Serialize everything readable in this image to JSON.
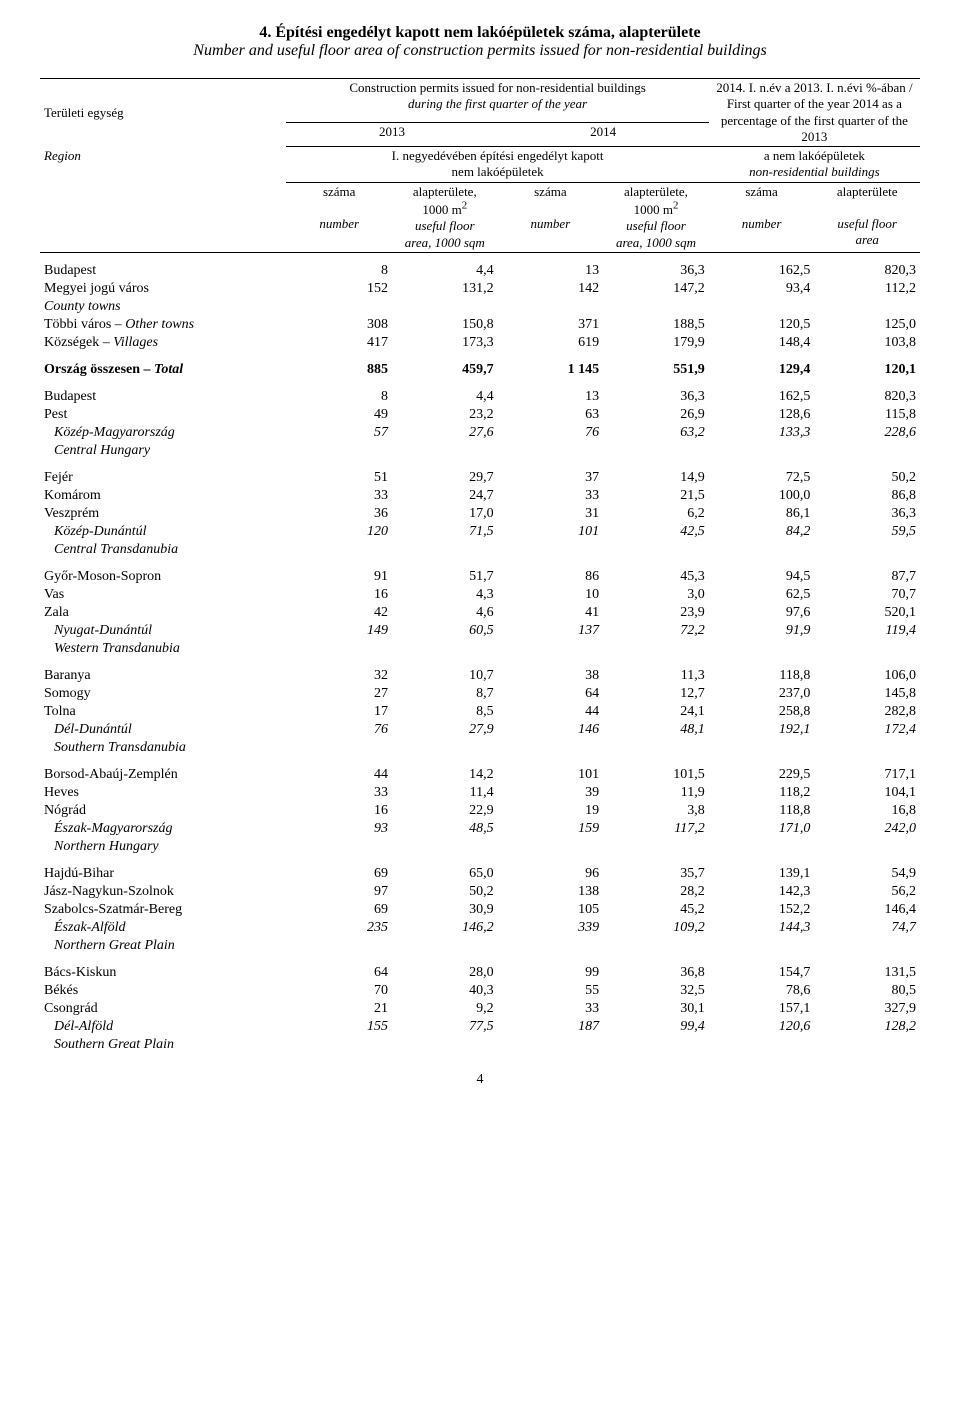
{
  "title_hu": "4. Építési engedélyt kapott nem lakóépületek száma, alapterülete",
  "title_en": "Number and useful floor area of construction permits issued for non-residential buildings",
  "header": {
    "left_hu": "Területi egység",
    "left_en": "Region",
    "top_hu": "Construction permits issued for non-residential buildings",
    "top_en": "during the first quarter of the year",
    "y2013": "2013",
    "y2014": "2014",
    "mid_hu": "I. negyedévében építési engedélyt kapott",
    "mid_hu2": "nem lakóépületek",
    "right1": "2014. I. n.év a 2013. I. n.évi %-ában / First quarter of the year 2014 as a percentage of the first quarter of the 2013",
    "right2_hu": "a nem lakóépületek",
    "right2_en": "non-residential buildings",
    "szama": "száma",
    "alap": "alapterülete,",
    "alap_last": "alapterülete",
    "m2": "1000 m",
    "sup2": "2",
    "number": "number",
    "useful": "useful floor",
    "area_sqm": "area, 1000 sqm",
    "area": "area"
  },
  "groups": [
    {
      "rows": [
        {
          "label": "Budapest",
          "v": [
            "8",
            "4,4",
            "13",
            "36,3",
            "162,5",
            "820,3"
          ]
        },
        {
          "label": "Megyei jogú város",
          "v": [
            "152",
            "131,2",
            "142",
            "147,2",
            "93,4",
            "112,2"
          ]
        },
        {
          "label": "County towns",
          "italic": true
        },
        {
          "label": "Többi város – Other towns",
          "mixed": true,
          "v": [
            "308",
            "150,8",
            "371",
            "188,5",
            "120,5",
            "125,0"
          ]
        },
        {
          "label": "Községek – Villages",
          "mixed": true,
          "v": [
            "417",
            "173,3",
            "619",
            "179,9",
            "148,4",
            "103,8"
          ]
        }
      ]
    },
    {
      "rows": [
        {
          "label": "Ország összesen – Total",
          "bold": true,
          "mixed": true,
          "v": [
            "885",
            "459,7",
            "1 145",
            "551,9",
            "129,4",
            "120,1"
          ]
        }
      ]
    },
    {
      "rows": [
        {
          "label": "Budapest",
          "v": [
            "8",
            "4,4",
            "13",
            "36,3",
            "162,5",
            "820,3"
          ]
        },
        {
          "label": "Pest",
          "v": [
            "49",
            "23,2",
            "63",
            "26,9",
            "128,6",
            "115,8"
          ]
        },
        {
          "label": "Közép-Magyarország",
          "indent": true,
          "italic": true,
          "v": [
            "57",
            "27,6",
            "76",
            "63,2",
            "133,3",
            "228,6"
          ]
        },
        {
          "label": "Central Hungary",
          "indent": true,
          "italic": true
        }
      ]
    },
    {
      "rows": [
        {
          "label": "Fejér",
          "v": [
            "51",
            "29,7",
            "37",
            "14,9",
            "72,5",
            "50,2"
          ]
        },
        {
          "label": "Komárom",
          "v": [
            "33",
            "24,7",
            "33",
            "21,5",
            "100,0",
            "86,8"
          ]
        },
        {
          "label": "Veszprém",
          "v": [
            "36",
            "17,0",
            "31",
            "6,2",
            "86,1",
            "36,3"
          ]
        },
        {
          "label": "Közép-Dunántúl",
          "indent": true,
          "italic": true,
          "v": [
            "120",
            "71,5",
            "101",
            "42,5",
            "84,2",
            "59,5"
          ]
        },
        {
          "label": "Central Transdanubia",
          "indent": true,
          "italic": true
        }
      ]
    },
    {
      "rows": [
        {
          "label": "Győr-Moson-Sopron",
          "v": [
            "91",
            "51,7",
            "86",
            "45,3",
            "94,5",
            "87,7"
          ]
        },
        {
          "label": "Vas",
          "v": [
            "16",
            "4,3",
            "10",
            "3,0",
            "62,5",
            "70,7"
          ]
        },
        {
          "label": "Zala",
          "v": [
            "42",
            "4,6",
            "41",
            "23,9",
            "97,6",
            "520,1"
          ]
        },
        {
          "label": "Nyugat-Dunántúl",
          "indent": true,
          "italic": true,
          "v": [
            "149",
            "60,5",
            "137",
            "72,2",
            "91,9",
            "119,4"
          ]
        },
        {
          "label": "Western Transdanubia",
          "indent": true,
          "italic": true
        }
      ]
    },
    {
      "rows": [
        {
          "label": "Baranya",
          "v": [
            "32",
            "10,7",
            "38",
            "11,3",
            "118,8",
            "106,0"
          ]
        },
        {
          "label": "Somogy",
          "v": [
            "27",
            "8,7",
            "64",
            "12,7",
            "237,0",
            "145,8"
          ]
        },
        {
          "label": "Tolna",
          "v": [
            "17",
            "8,5",
            "44",
            "24,1",
            "258,8",
            "282,8"
          ]
        },
        {
          "label": "Dél-Dunántúl",
          "indent": true,
          "italic": true,
          "v": [
            "76",
            "27,9",
            "146",
            "48,1",
            "192,1",
            "172,4"
          ]
        },
        {
          "label": "Southern Transdanubia",
          "indent": true,
          "italic": true
        }
      ]
    },
    {
      "rows": [
        {
          "label": "Borsod-Abaúj-Zemplén",
          "v": [
            "44",
            "14,2",
            "101",
            "101,5",
            "229,5",
            "717,1"
          ]
        },
        {
          "label": "Heves",
          "v": [
            "33",
            "11,4",
            "39",
            "11,9",
            "118,2",
            "104,1"
          ]
        },
        {
          "label": "Nógrád",
          "v": [
            "16",
            "22,9",
            "19",
            "3,8",
            "118,8",
            "16,8"
          ]
        },
        {
          "label": "Észak-Magyarország",
          "indent": true,
          "italic": true,
          "v": [
            "93",
            "48,5",
            "159",
            "117,2",
            "171,0",
            "242,0"
          ]
        },
        {
          "label": "Northern Hungary",
          "indent": true,
          "italic": true
        }
      ]
    },
    {
      "rows": [
        {
          "label": "Hajdú-Bihar",
          "v": [
            "69",
            "65,0",
            "96",
            "35,7",
            "139,1",
            "54,9"
          ]
        },
        {
          "label": "Jász-Nagykun-Szolnok",
          "v": [
            "97",
            "50,2",
            "138",
            "28,2",
            "142,3",
            "56,2"
          ]
        },
        {
          "label": "Szabolcs-Szatmár-Bereg",
          "v": [
            "69",
            "30,9",
            "105",
            "45,2",
            "152,2",
            "146,4"
          ]
        },
        {
          "label": "Észak-Alföld",
          "indent": true,
          "italic": true,
          "v": [
            "235",
            "146,2",
            "339",
            "109,2",
            "144,3",
            "74,7"
          ]
        },
        {
          "label": "Northern Great Plain",
          "indent": true,
          "italic": true
        }
      ]
    },
    {
      "rows": [
        {
          "label": "Bács-Kiskun",
          "v": [
            "64",
            "28,0",
            "99",
            "36,8",
            "154,7",
            "131,5"
          ]
        },
        {
          "label": "Békés",
          "v": [
            "70",
            "40,3",
            "55",
            "32,5",
            "78,6",
            "80,5"
          ]
        },
        {
          "label": "Csongrád",
          "v": [
            "21",
            "9,2",
            "33",
            "30,1",
            "157,1",
            "327,9"
          ]
        },
        {
          "label": "Dél-Alföld",
          "indent": true,
          "italic": true,
          "v": [
            "155",
            "77,5",
            "187",
            "99,4",
            "120,6",
            "128,2"
          ]
        },
        {
          "label": "Southern Great Plain",
          "indent": true,
          "italic": true
        }
      ]
    }
  ],
  "page_number": "4"
}
